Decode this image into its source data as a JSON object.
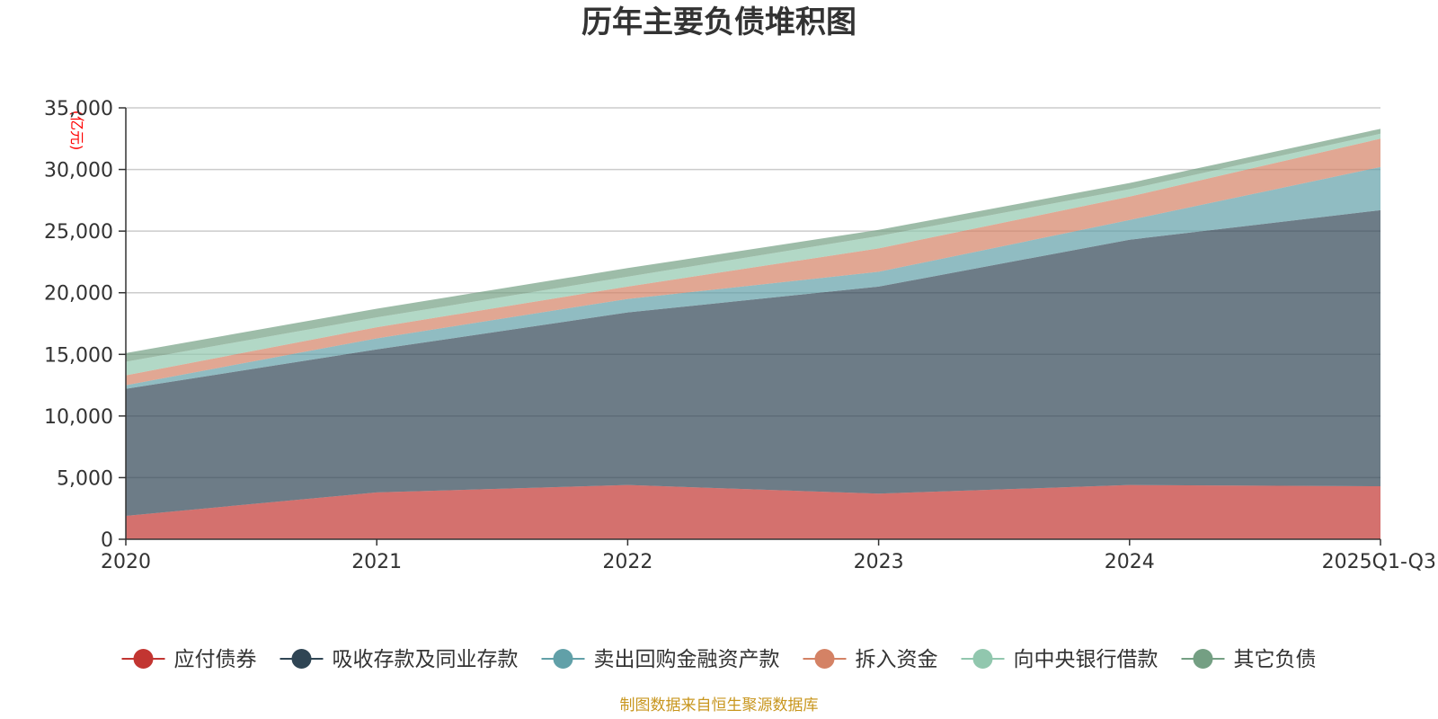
{
  "chart_data": {
    "type": "area",
    "stacked": true,
    "title": "历年主要负债堆积图",
    "ylabel": "(亿元)",
    "xlabel": "",
    "categories": [
      "2020",
      "2021",
      "2022",
      "2023",
      "2024",
      "2025Q1-Q3"
    ],
    "y_ticks": [
      "0",
      "5,000",
      "10,000",
      "15,000",
      "20,000",
      "25,000",
      "30,000",
      "35,000"
    ],
    "ylim": [
      0,
      35000
    ],
    "grid": true,
    "legend_position": "bottom",
    "series": [
      {
        "name": "应付债券",
        "color": "#c23531",
        "values": [
          1900,
          3800,
          4400,
          3700,
          4400,
          4300
        ]
      },
      {
        "name": "吸收存款及同业存款",
        "color": "#2f4554",
        "values": [
          10300,
          11600,
          14000,
          16800,
          19900,
          22400
        ]
      },
      {
        "name": "卖出回购金融资产款",
        "color": "#61a0a8",
        "values": [
          300,
          900,
          1100,
          1200,
          1600,
          3500
        ]
      },
      {
        "name": "拆入资金",
        "color": "#d48265",
        "values": [
          800,
          900,
          1000,
          1900,
          1900,
          2300
        ]
      },
      {
        "name": "向中央银行借款",
        "color": "#91c7ae",
        "values": [
          1100,
          800,
          800,
          1000,
          600,
          400
        ]
      },
      {
        "name": "其它负债",
        "color": "#749f83",
        "values": [
          700,
          700,
          700,
          500,
          500,
          400
        ]
      }
    ],
    "source_note": "制图数据来自恒生聚源数据库"
  }
}
